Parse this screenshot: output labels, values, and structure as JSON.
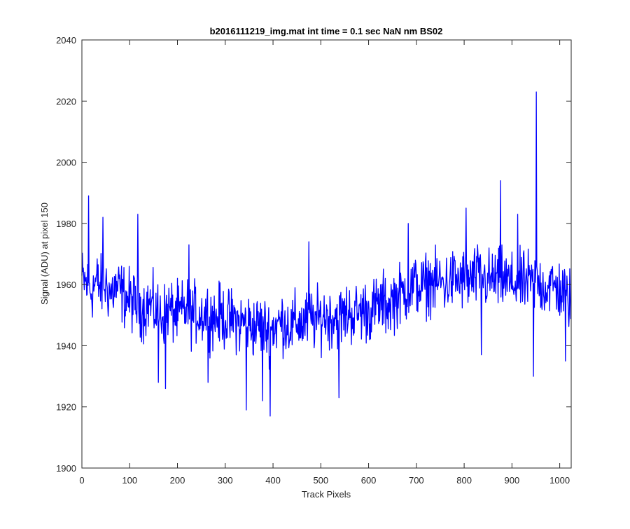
{
  "chart_data": {
    "type": "line",
    "title": "b2016111219_img.mat int time = 0.1 sec  NaN nm BS02",
    "xlabel": "Track Pixels",
    "ylabel": "Signal (ADU) at pixel 150",
    "xlim": [
      0,
      1024
    ],
    "ylim": [
      1900,
      2040
    ],
    "xticks": [
      0,
      100,
      200,
      300,
      400,
      500,
      600,
      700,
      800,
      900,
      1000
    ],
    "yticks": [
      1900,
      1920,
      1940,
      1960,
      1980,
      2000,
      2020,
      2040
    ],
    "grid": false,
    "line_color": "#0000ff",
    "series": [
      {
        "x": [
          0,
          10,
          20,
          30,
          40,
          50,
          60,
          70,
          80,
          90,
          100,
          110,
          120,
          130,
          140,
          150,
          160,
          170,
          180,
          190,
          200,
          210,
          220,
          230,
          240,
          250,
          260,
          270,
          280,
          290,
          300,
          310,
          320,
          330,
          340,
          350,
          360,
          370,
          380,
          390,
          400,
          410,
          420,
          430,
          440,
          450,
          460,
          470,
          480,
          490,
          500,
          510,
          520,
          530,
          540,
          550,
          560,
          570,
          580,
          590,
          600,
          610,
          620,
          630,
          640,
          650,
          660,
          670,
          680,
          690,
          700,
          710,
          720,
          730,
          740,
          750,
          760,
          770,
          780,
          790,
          800,
          810,
          820,
          830,
          840,
          850,
          860,
          870,
          880,
          890,
          900,
          910,
          920,
          930,
          940,
          950,
          960,
          970,
          980,
          990,
          1000,
          1010,
          1020
        ],
        "values": [
          1962,
          1960,
          1958,
          1961,
          1959,
          1960,
          1957,
          1959,
          1958,
          1956,
          1955,
          1954,
          1953,
          1952,
          1954,
          1952,
          1951,
          1950,
          1952,
          1951,
          1950,
          1951,
          1952,
          1950,
          1951,
          1950,
          1951,
          1950,
          1949,
          1950,
          1949,
          1948,
          1949,
          1947,
          1948,
          1947,
          1946,
          1947,
          1946,
          1945,
          1946,
          1947,
          1948,
          1947,
          1946,
          1948,
          1947,
          1948,
          1949,
          1948,
          1949,
          1950,
          1949,
          1950,
          1949,
          1950,
          1951,
          1950,
          1951,
          1952,
          1951,
          1952,
          1953,
          1954,
          1953,
          1955,
          1956,
          1957,
          1958,
          1959,
          1960,
          1959,
          1960,
          1961,
          1960,
          1961,
          1960,
          1961,
          1962,
          1961,
          1962,
          1961,
          1962,
          1963,
          1962,
          1961,
          1962,
          1961,
          1962,
          1961,
          1960,
          1961,
          1960,
          1961,
          1960,
          1961,
          1960,
          1959,
          1960,
          1959,
          1958,
          1957,
          1955
        ]
      }
    ],
    "annotations": [
      {
        "x": 14,
        "y": 1989
      },
      {
        "x": 44,
        "y": 1982
      },
      {
        "x": 117,
        "y": 1983
      },
      {
        "x": 160,
        "y": 1928
      },
      {
        "x": 175,
        "y": 1926
      },
      {
        "x": 224,
        "y": 1973
      },
      {
        "x": 264,
        "y": 1928
      },
      {
        "x": 344,
        "y": 1919
      },
      {
        "x": 378,
        "y": 1922
      },
      {
        "x": 394,
        "y": 1917
      },
      {
        "x": 475,
        "y": 1974
      },
      {
        "x": 538,
        "y": 1923
      },
      {
        "x": 683,
        "y": 1980
      },
      {
        "x": 804,
        "y": 1985
      },
      {
        "x": 836,
        "y": 1937
      },
      {
        "x": 876,
        "y": 1994
      },
      {
        "x": 912,
        "y": 1983
      },
      {
        "x": 945,
        "y": 1930
      },
      {
        "x": 951,
        "y": 2023
      },
      {
        "x": 1012,
        "y": 1935
      }
    ]
  }
}
